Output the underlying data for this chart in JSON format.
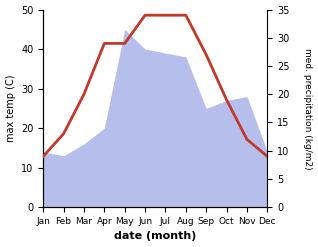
{
  "months": [
    "Jan",
    "Feb",
    "Mar",
    "Apr",
    "May",
    "Jun",
    "Jul",
    "Aug",
    "Sep",
    "Oct",
    "Nov",
    "Dec"
  ],
  "temperature": [
    9,
    13,
    20,
    29,
    29,
    34,
    34,
    34,
    27,
    19,
    12,
    9
  ],
  "precipitation": [
    14,
    13,
    16,
    20,
    45,
    40,
    39,
    38,
    25,
    27,
    28,
    14
  ],
  "temp_ylim": [
    0,
    35
  ],
  "precip_ylim": [
    0,
    50
  ],
  "temp_color": "#c0392b",
  "precip_color": "#aab4e8",
  "xlabel": "date (month)",
  "ylabel_left": "max temp (C)",
  "ylabel_right": "med. precipitation (kg/m2)",
  "bg_color": "#ffffff",
  "temp_linewidth": 2.0,
  "left_yticks": [
    0,
    10,
    20,
    30,
    40,
    50
  ],
  "right_yticks": [
    0,
    5,
    10,
    15,
    20,
    25,
    30,
    35
  ]
}
